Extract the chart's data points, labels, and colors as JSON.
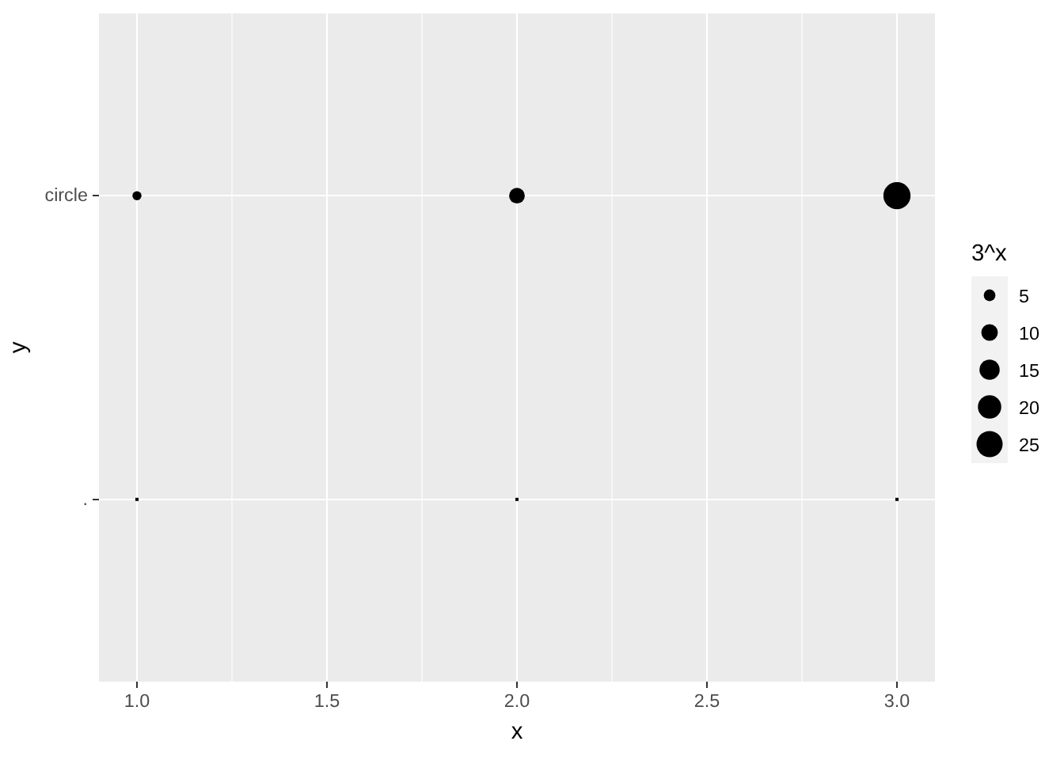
{
  "chart_data": {
    "type": "bubble",
    "orientation": "horizontal",
    "xlabel": "x",
    "ylabel": "y",
    "legend_title": "3^x",
    "categories": [
      "circle",
      "."
    ],
    "marker": "circle",
    "series": [
      {
        "color": "#000000",
        "values": [
          1,
          null
        ],
        "sizes": [
          3,
          null
        ]
      },
      {
        "color": "#000000",
        "values": [
          2,
          null
        ],
        "sizes": [
          9,
          null
        ]
      },
      {
        "color": "#000000",
        "values": [
          3,
          null
        ],
        "sizes": [
          27,
          null
        ]
      },
      {
        "type": "scatter",
        "marker": "square",
        "color": "#000000",
        "values": [
          null,
          1
        ]
      },
      {
        "type": "scatter",
        "marker": "square",
        "color": "#000000",
        "values": [
          null,
          2
        ]
      },
      {
        "type": "scatter",
        "marker": "square",
        "color": "#000000",
        "values": [
          null,
          3
        ]
      }
    ],
    "size_legend": [
      5,
      10,
      15,
      20,
      25
    ],
    "xlim": [
      0.9,
      3.1
    ],
    "xticks": [
      {
        "value": 1,
        "label": "1.0"
      },
      {
        "value": 1.5,
        "label": "1.5"
      },
      {
        "value": 2,
        "label": "2.0"
      },
      {
        "value": 2.5,
        "label": "2.5"
      },
      {
        "value": 3,
        "label": "3.0"
      }
    ],
    "grid": true
  }
}
